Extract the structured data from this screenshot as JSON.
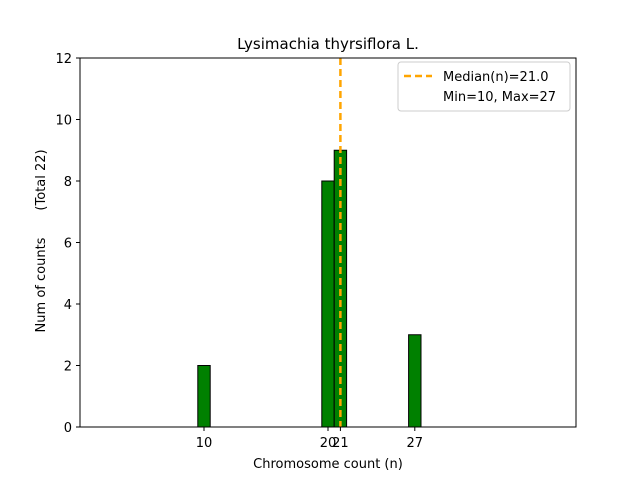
{
  "chart_data": {
    "type": "bar",
    "title": "Lysimachia thyrsiflora L.",
    "xlabel": "Chromosome count (n)",
    "ylabel": "Num of counts",
    "ylabel_secondary": "(Total 22)",
    "xlim": [
      0,
      40
    ],
    "ylim": [
      0,
      12
    ],
    "xticks": [
      10,
      20,
      21,
      27
    ],
    "yticks": [
      0,
      2,
      4,
      6,
      8,
      10,
      12
    ],
    "bars": [
      {
        "x": 10,
        "value": 2
      },
      {
        "x": 20,
        "value": 8
      },
      {
        "x": 21,
        "value": 9
      },
      {
        "x": 27,
        "value": 3
      }
    ],
    "bar_color": "#008000",
    "median": 21.0,
    "median_color": "#FFA500",
    "legend": {
      "placement": "top-right",
      "entries": [
        "Median(n)=21.0",
        "Min=10, Max=27"
      ]
    }
  }
}
